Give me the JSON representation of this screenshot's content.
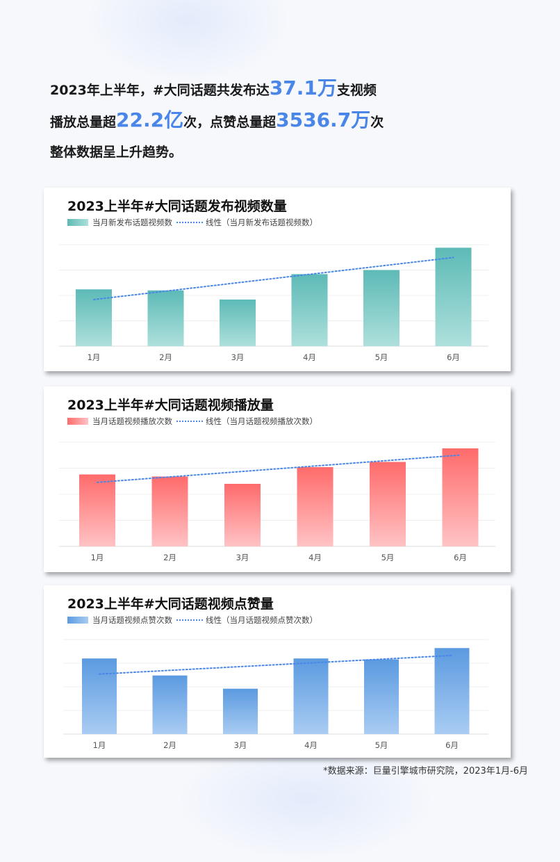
{
  "headline": {
    "line1_pre": "2023年上半年，#大同话题共发布达",
    "line1_num": "37.1万",
    "line1_post": "支视频",
    "line2_pre": "播放总量超",
    "line2_num": "22.2亿",
    "line2_mid": "次，点赞总量超",
    "line2_num2": "3536.7万",
    "line2_post": "次",
    "line3": "整体数据呈上升趋势。"
  },
  "chart_data": [
    {
      "type": "bar",
      "title": "2023上半年#大同话题发布视频数量",
      "categories": [
        "1月",
        "2月",
        "3月",
        "4月",
        "5月",
        "6月"
      ],
      "series": [
        {
          "name": "当月新发布话题视频数",
          "values": [
            56,
            55,
            46,
            71,
            75,
            97
          ]
        }
      ],
      "trendline_label": "线性（当月新发布话题视频数）",
      "ylim": [
        0,
        100
      ],
      "grid": true,
      "legend": "top-left",
      "colors": {
        "bar_top": "#5dbab6",
        "bar_bottom": "#aee0dc",
        "trend": "#4a86e8"
      }
    },
    {
      "type": "bar",
      "title": "2023上半年#大同话题视频播放量",
      "categories": [
        "1月",
        "2月",
        "3月",
        "4月",
        "5月",
        "6月"
      ],
      "series": [
        {
          "name": "当月话题视频播放次数",
          "values": [
            69,
            67,
            60,
            76,
            81,
            94
          ]
        }
      ],
      "trendline_label": "线性（当月话题视频播放次数）",
      "ylim": [
        0,
        100
      ],
      "grid": true,
      "legend": "top-left",
      "colors": {
        "bar_top": "#ff6b6b",
        "bar_bottom": "#ffc3c5",
        "trend": "#4a86e8"
      }
    },
    {
      "type": "bar",
      "title": "2023上半年#大同话题视频点赞量",
      "categories": [
        "1月",
        "2月",
        "3月",
        "4月",
        "5月",
        "6月"
      ],
      "series": [
        {
          "name": "当月话题视频点赞次数",
          "values": [
            80,
            62,
            48,
            80,
            79,
            91
          ]
        }
      ],
      "trendline_label": "线性（当月话题视频点赞次数）",
      "ylim": [
        0,
        100
      ],
      "grid": true,
      "legend": "top-left",
      "colors": {
        "bar_top": "#5b9ae0",
        "bar_bottom": "#a9ccf3",
        "trend": "#4a86e8"
      }
    }
  ],
  "source": "*数据来源：巨量引擎城市研究院，2023年1月-6月"
}
